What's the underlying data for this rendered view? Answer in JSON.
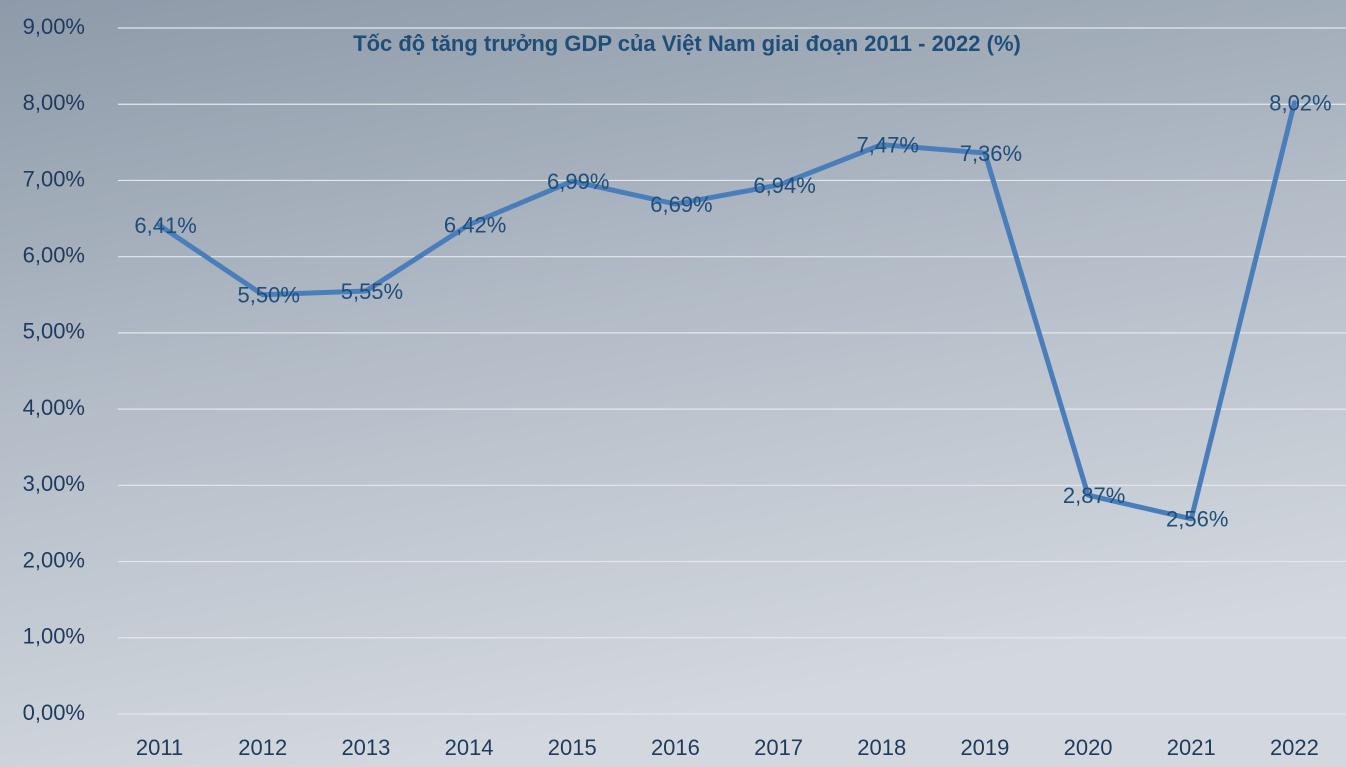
{
  "chart_data": {
    "type": "line",
    "title": "Tốc độ tăng trưởng GDP của Việt Nam giai đoạn 2011 - 2022 (%)",
    "categories": [
      "2011",
      "2012",
      "2013",
      "2014",
      "2015",
      "2016",
      "2017",
      "2018",
      "2019",
      "2020",
      "2021",
      "2022"
    ],
    "values": [
      6.41,
      5.5,
      5.55,
      6.42,
      6.99,
      6.69,
      6.94,
      7.47,
      7.36,
      2.87,
      2.56,
      8.02
    ],
    "value_labels": [
      "6,41%",
      "5,50%",
      "5,55%",
      "6,42%",
      "6,99%",
      "6,69%",
      "6,94%",
      "7,47%",
      "7,36%",
      "2,87%",
      "2,56%",
      "8,02%"
    ],
    "color": "#4a7ebb",
    "ylim": [
      0,
      9
    ],
    "yticks": [
      {
        "value": 0,
        "label": "0,00%"
      },
      {
        "value": 1,
        "label": "1,00%"
      },
      {
        "value": 2,
        "label": "2,00%"
      },
      {
        "value": 3,
        "label": "3,00%"
      },
      {
        "value": 4,
        "label": "4,00%"
      },
      {
        "value": 5,
        "label": "5,00%"
      },
      {
        "value": 6,
        "label": "6,00%"
      },
      {
        "value": 7,
        "label": "7,00%"
      },
      {
        "value": 8,
        "label": "8,00%"
      },
      {
        "value": 9,
        "label": "9,00%"
      }
    ],
    "grid": true
  }
}
